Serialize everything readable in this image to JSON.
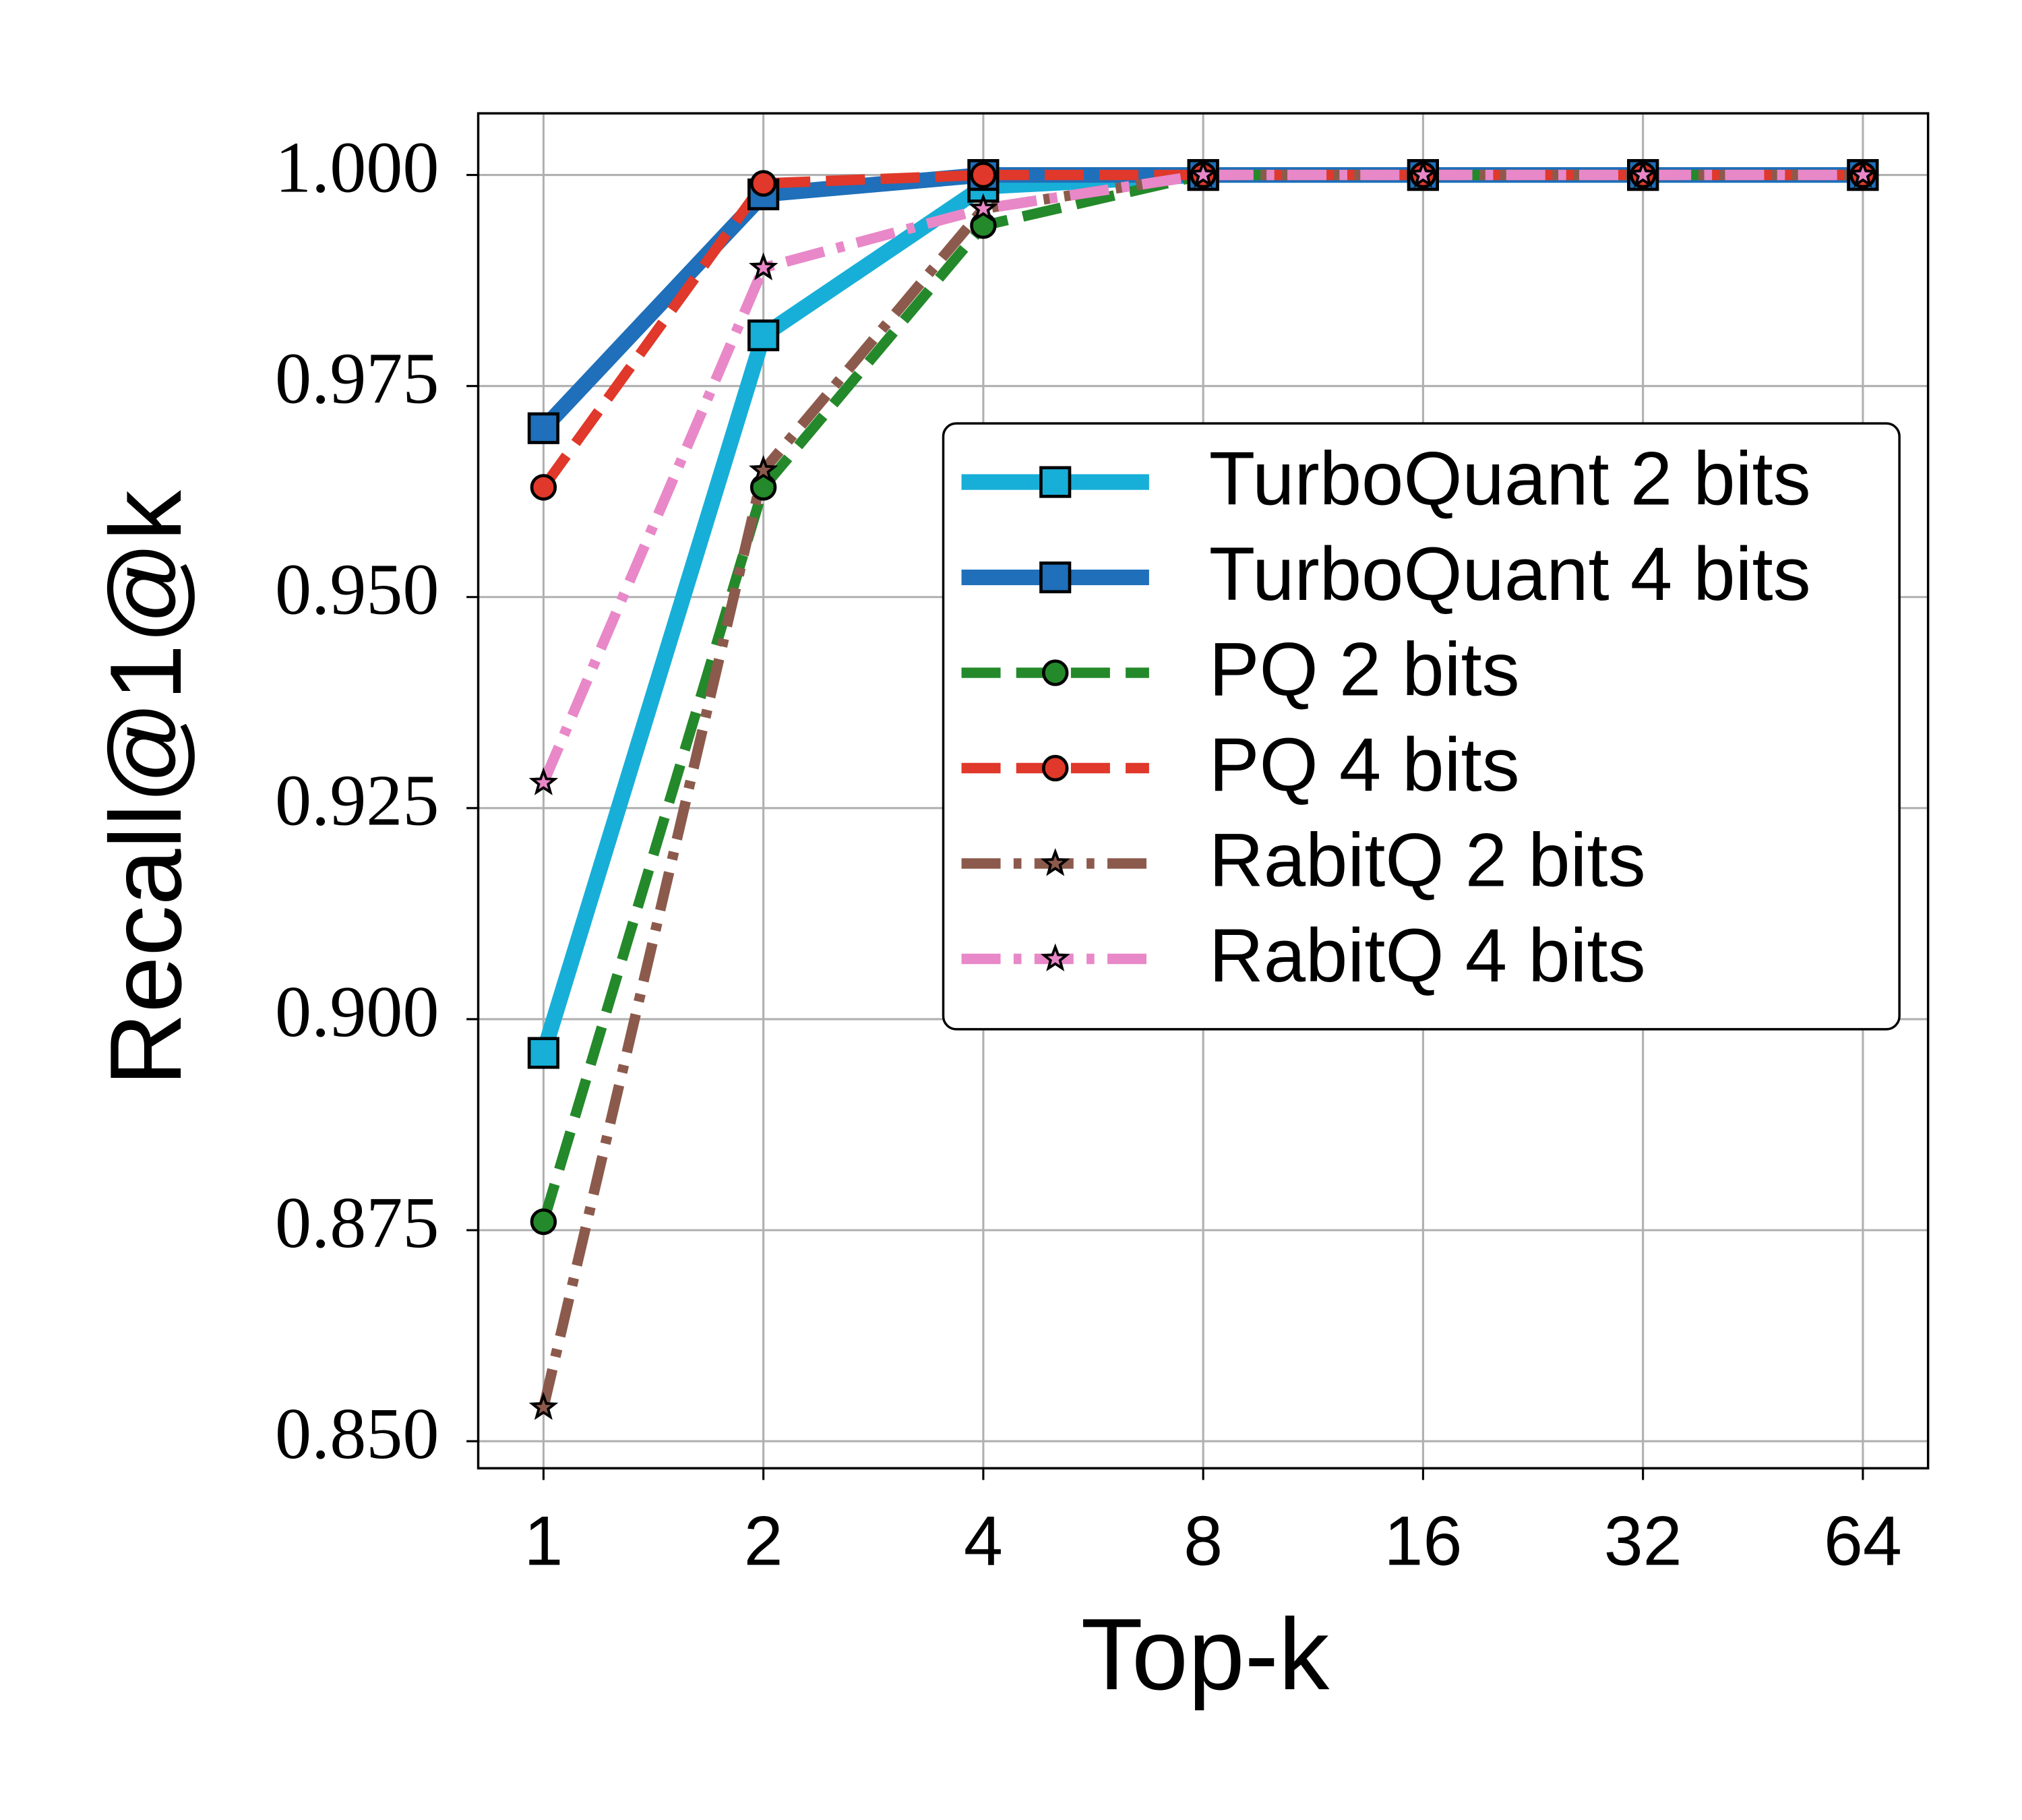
{
  "chart_data": {
    "type": "line",
    "x_label": "Top-k",
    "y_label": "Recall@1@k",
    "x": [
      1,
      2,
      4,
      8,
      16,
      32,
      64
    ],
    "xscale": "log2",
    "xlim": [
      0.814,
      78.6
    ],
    "xticks": [
      1,
      2,
      4,
      8,
      16,
      32,
      64
    ],
    "ylim": [
      0.8468,
      1.0073
    ],
    "yticks": [
      {
        "value": 0.85,
        "label": "0.850"
      },
      0.875,
      {
        "value": 0.9,
        "label": "0.900"
      },
      0.925,
      {
        "value": 0.95,
        "label": "0.950"
      },
      0.975,
      {
        "value": 1,
        "label": "1.000"
      }
    ],
    "grid": true,
    "legend": "upper right",
    "series": [
      {
        "name": "TurboQuant 2 bits",
        "color": "#17afd7",
        "dash": "solid",
        "marker": "square",
        "values": [
          0.896,
          0.981,
          0.9986,
          1,
          1,
          1,
          1
        ]
      },
      {
        "name": "TurboQuant 4 bits",
        "color": "#1f6fba",
        "dash": "solid",
        "marker": "square",
        "values": [
          0.97,
          0.9977,
          1,
          1,
          1,
          1,
          1
        ]
      },
      {
        "name": "PQ 2 bits",
        "color": "#24892a",
        "dash": "dashed",
        "marker": "circle",
        "values": [
          0.876,
          0.963,
          0.994,
          1,
          1,
          1,
          1
        ]
      },
      {
        "name": "PQ 4 bits",
        "color": "#e0382a",
        "dash": "dashed",
        "marker": "circle",
        "values": [
          0.963,
          0.999,
          1,
          1,
          1,
          1,
          1
        ]
      },
      {
        "name": "RabitQ 2 bits",
        "color": "#8c5a4c",
        "dash": "dashdot",
        "marker": "star",
        "values": [
          0.854,
          0.965,
          0.996,
          1,
          1,
          1,
          1
        ]
      },
      {
        "name": "RabitQ 4 bits",
        "color": "#e888c8",
        "dash": "dashdot",
        "marker": "star",
        "values": [
          0.928,
          0.989,
          0.996,
          1,
          1,
          1,
          1
        ]
      }
    ]
  }
}
